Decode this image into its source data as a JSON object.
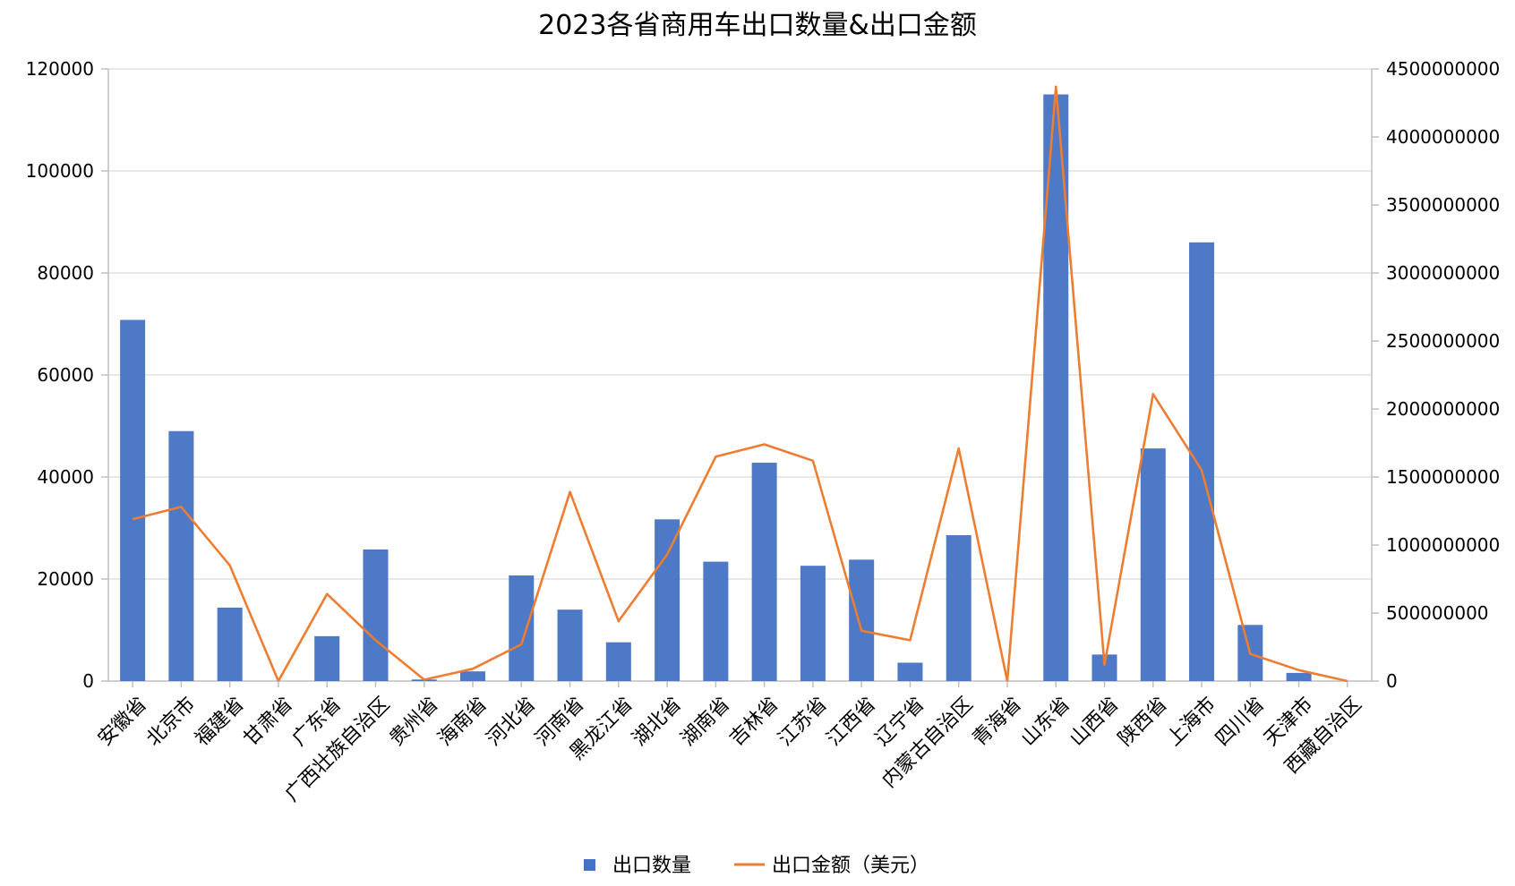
{
  "chart_data": {
    "type": "bar",
    "title": "2023各省商用车出口数量&出口金额",
    "categories": [
      "安徽省",
      "北京市",
      "福建省",
      "甘肃省",
      "广东省",
      "广西壮族自治区",
      "贵州省",
      "海南省",
      "河北省",
      "河南省",
      "黑龙江省",
      "湖北省",
      "湖南省",
      "吉林省",
      "江苏省",
      "江西省",
      "辽宁省",
      "内蒙古自治区",
      "青海省",
      "山东省",
      "山西省",
      "陕西省",
      "上海市",
      "四川省",
      "天津市",
      "西藏自治区"
    ],
    "series": [
      {
        "name": "出口数量",
        "type": "bar",
        "axis": "left",
        "color": "#4472c4",
        "values": [
          70800,
          49000,
          14400,
          0,
          8800,
          25800,
          300,
          1900,
          20700,
          14000,
          7600,
          31700,
          23400,
          42800,
          22600,
          23800,
          3600,
          28600,
          0,
          115000,
          5200,
          45600,
          86000,
          11000,
          1600,
          0
        ]
      },
      {
        "name": "出口金额（美元）",
        "type": "line",
        "axis": "right",
        "color": "#ed7d31",
        "values": [
          1190000000,
          1280000000,
          850000000,
          0,
          640000000,
          300000000,
          10000000,
          90000000,
          270000000,
          1390000000,
          440000000,
          930000000,
          1650000000,
          1740000000,
          1620000000,
          370000000,
          300000000,
          1710000000,
          0,
          4370000000,
          120000000,
          2110000000,
          1550000000,
          200000000,
          80000000,
          0
        ]
      }
    ],
    "y_left": {
      "min": 0,
      "max": 120000,
      "ticks": [
        "0",
        "20000",
        "40000",
        "60000",
        "80000",
        "100000",
        "120000"
      ]
    },
    "y_right": {
      "min": 0,
      "max": 4500000000,
      "ticks": [
        "0",
        "500000000",
        "1000000000",
        "1500000000",
        "2000000000",
        "2500000000",
        "3000000000",
        "3500000000",
        "4000000000",
        "4500000000"
      ]
    },
    "grid": true,
    "legend_position": "bottom-center"
  }
}
